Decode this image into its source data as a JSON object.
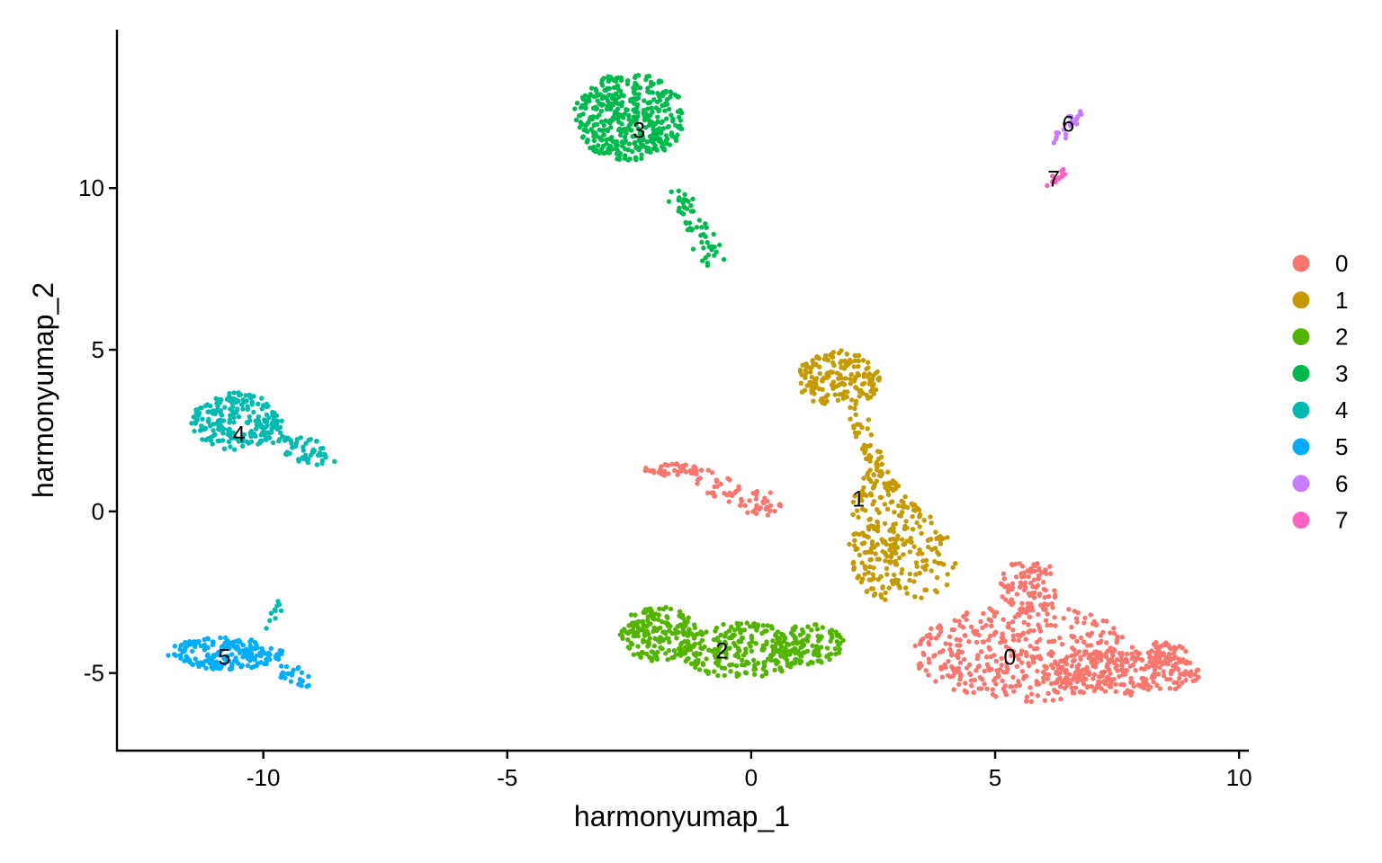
{
  "chart_data": {
    "type": "scatter",
    "title": "",
    "xlabel": "harmonyumap_1",
    "ylabel": "harmonyumap_2",
    "xlim": [
      -13,
      10.2
    ],
    "ylim": [
      -7.4,
      14.9
    ],
    "xticks": [
      -10,
      -5,
      0,
      5,
      10
    ],
    "yticks": [
      -5,
      0,
      5,
      10
    ],
    "xtick_labels": [
      "-10",
      "-5",
      "0",
      "5",
      "10"
    ],
    "ytick_labels": [
      "-5",
      "0",
      "5",
      "10"
    ],
    "grid": false,
    "legend_position": "right",
    "series": [
      {
        "name": "0",
        "color": "#F8766D",
        "label_pos": [
          5.3,
          -4.5
        ],
        "regions": [
          {
            "shape": "ellipse",
            "cx": 5.6,
            "cy": -4.4,
            "rx": 2.3,
            "ry": 1.5,
            "n": 420
          },
          {
            "shape": "ellipse",
            "cx": 7.6,
            "cy": -5.0,
            "rx": 1.6,
            "ry": 0.7,
            "n": 230
          },
          {
            "shape": "ellipse",
            "cx": 5.7,
            "cy": -2.3,
            "rx": 0.6,
            "ry": 0.9,
            "n": 90
          },
          {
            "shape": "ellipse",
            "cx": 8.5,
            "cy": -4.4,
            "rx": 0.5,
            "ry": 0.4,
            "n": 50
          },
          {
            "shape": "ellipse",
            "cx": -1.6,
            "cy": 1.3,
            "rx": 0.6,
            "ry": 0.2,
            "n": 40
          },
          {
            "shape": "line",
            "x1": -1.1,
            "y1": 1.0,
            "x2": 0.6,
            "y2": 0.0,
            "w": 0.3,
            "n": 60
          }
        ]
      },
      {
        "name": "1",
        "color": "#C49A00",
        "label_pos": [
          2.2,
          0.4
        ],
        "regions": [
          {
            "shape": "ellipse",
            "cx": 1.8,
            "cy": 4.1,
            "rx": 0.85,
            "ry": 0.9,
            "n": 170
          },
          {
            "shape": "line",
            "x1": 2.1,
            "y1": 3.2,
            "x2": 2.6,
            "y2": 1.2,
            "w": 0.2,
            "n": 40
          },
          {
            "shape": "ellipse",
            "cx": 2.6,
            "cy": -0.7,
            "rx": 0.6,
            "ry": 2.1,
            "n": 180
          },
          {
            "shape": "ellipse",
            "cx": 3.4,
            "cy": -1.6,
            "rx": 0.8,
            "ry": 1.1,
            "n": 80
          },
          {
            "shape": "line",
            "x1": 3.2,
            "y1": 0.3,
            "x2": 4.0,
            "y2": -0.9,
            "w": 0.2,
            "n": 25
          }
        ]
      },
      {
        "name": "2",
        "color": "#53B400",
        "label_pos": [
          -0.6,
          -4.3
        ],
        "regions": [
          {
            "shape": "ellipse",
            "cx": -1.9,
            "cy": -3.8,
            "rx": 0.8,
            "ry": 0.85,
            "n": 180
          },
          {
            "shape": "ellipse",
            "cx": -0.2,
            "cy": -4.3,
            "rx": 1.3,
            "ry": 0.85,
            "n": 230
          },
          {
            "shape": "ellipse",
            "cx": 1.1,
            "cy": -4.1,
            "rx": 0.8,
            "ry": 0.65,
            "n": 110
          }
        ]
      },
      {
        "name": "3",
        "color": "#00B94E",
        "label_pos": [
          -2.3,
          11.8
        ],
        "regions": [
          {
            "shape": "ellipse",
            "cx": -2.5,
            "cy": 12.2,
            "rx": 1.15,
            "ry": 1.35,
            "n": 420
          },
          {
            "shape": "line",
            "x1": -1.6,
            "y1": 10.0,
            "x2": -0.7,
            "y2": 7.7,
            "w": 0.25,
            "n": 55
          }
        ]
      },
      {
        "name": "4",
        "color": "#00B9B1",
        "label_pos": [
          -10.5,
          2.4
        ],
        "regions": [
          {
            "shape": "ellipse",
            "cx": -10.6,
            "cy": 2.8,
            "rx": 0.9,
            "ry": 0.9,
            "n": 200
          },
          {
            "shape": "line",
            "x1": -10.0,
            "y1": 2.6,
            "x2": -8.7,
            "y2": 1.5,
            "w": 0.3,
            "n": 70
          },
          {
            "shape": "line",
            "x1": -9.9,
            "y1": -3.6,
            "x2": -9.6,
            "y2": -2.7,
            "w": 0.1,
            "n": 10
          }
        ]
      },
      {
        "name": "5",
        "color": "#00ADFA",
        "label_pos": [
          -10.8,
          -4.5
        ],
        "regions": [
          {
            "shape": "ellipse",
            "cx": -10.8,
            "cy": -4.4,
            "rx": 1.2,
            "ry": 0.5,
            "n": 190
          },
          {
            "shape": "line",
            "x1": -9.9,
            "y1": -4.5,
            "x2": -9.1,
            "y2": -5.4,
            "w": 0.2,
            "n": 30
          }
        ]
      },
      {
        "name": "6",
        "color": "#C77CFF",
        "label_pos": [
          6.5,
          12.0
        ],
        "regions": [
          {
            "shape": "line",
            "x1": 6.3,
            "y1": 11.5,
            "x2": 6.7,
            "y2": 12.4,
            "w": 0.12,
            "n": 22
          }
        ]
      },
      {
        "name": "7",
        "color": "#FF61C3",
        "label_pos": [
          6.2,
          10.3
        ],
        "regions": [
          {
            "shape": "line",
            "x1": 6.1,
            "y1": 10.1,
            "x2": 6.4,
            "y2": 10.5,
            "w": 0.1,
            "n": 14
          }
        ]
      }
    ]
  }
}
